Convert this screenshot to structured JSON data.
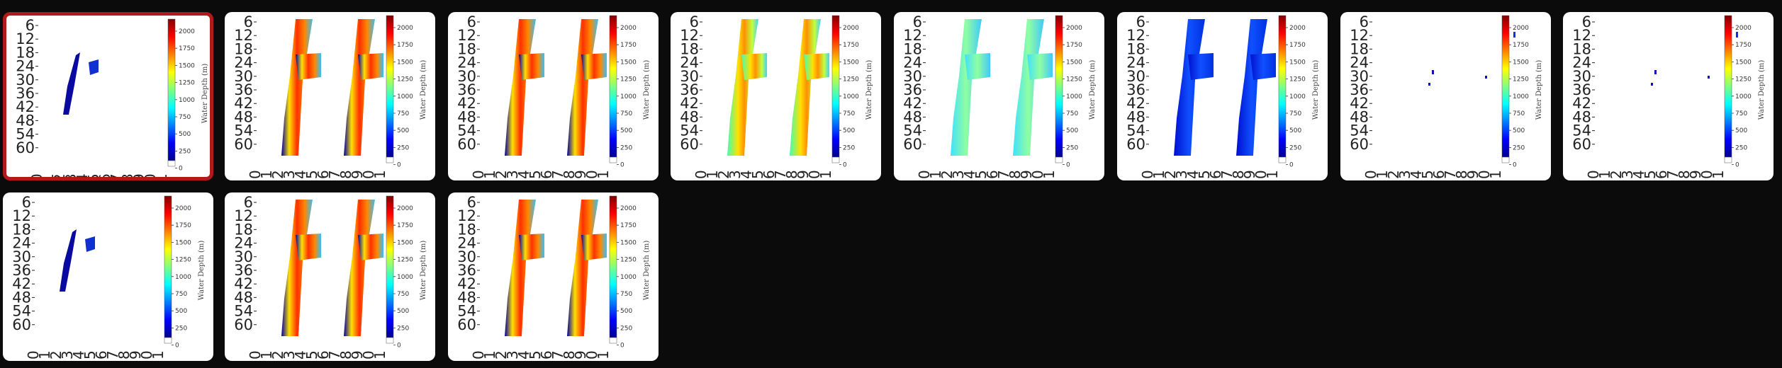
{
  "colors": {
    "background": "#0b0b0b",
    "card": "#ffffff",
    "selected_border": "#b1191b",
    "colormap": [
      "#00008f",
      "#0000ff",
      "#0080ff",
      "#00ffff",
      "#80ff80",
      "#ffff00",
      "#ff8000",
      "#ff0000",
      "#800000"
    ]
  },
  "panel_text": {
    "y_ticks": [
      "6",
      "12",
      "18",
      "24",
      "30",
      "36",
      "42",
      "48",
      "54",
      "60"
    ],
    "x_ticks": [
      "0",
      "1",
      "2",
      "3",
      "4",
      "5",
      "6",
      "7",
      "8",
      "9",
      "0",
      "1"
    ],
    "colorbar_ticks": [
      "2000",
      "1750",
      "1500",
      "1250",
      "1000",
      "750",
      "500",
      "250",
      "0"
    ],
    "colorbar_label": "Water Depth (m)"
  },
  "thumbnails": [
    {
      "id": 1,
      "selected": true
    },
    {
      "id": 2,
      "selected": false
    },
    {
      "id": 3,
      "selected": false
    },
    {
      "id": 4,
      "selected": false
    },
    {
      "id": 5,
      "selected": false
    },
    {
      "id": 6,
      "selected": false
    },
    {
      "id": 7,
      "selected": false
    },
    {
      "id": 8,
      "selected": false
    },
    {
      "id": 9,
      "selected": false
    },
    {
      "id": 10,
      "selected": false
    },
    {
      "id": 11,
      "selected": false
    }
  ]
}
